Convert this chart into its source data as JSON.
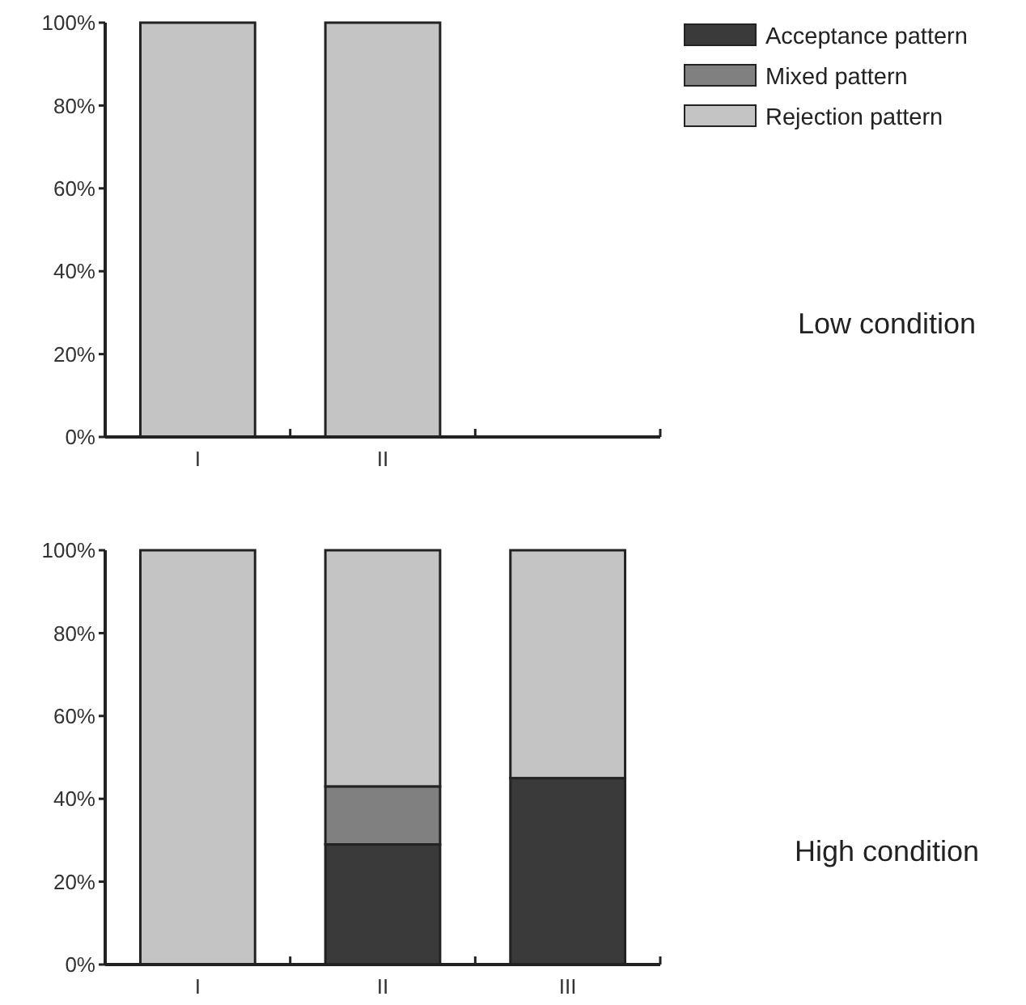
{
  "chart_data": [
    {
      "type": "bar",
      "annotations": [
        "Low condition"
      ],
      "categories": [
        "I",
        "II",
        null
      ],
      "stacked": true,
      "ylim": [
        0,
        100
      ],
      "yticks": [
        {
          "value": 0,
          "label": "0%"
        },
        {
          "value": 20,
          "label": "20%"
        },
        {
          "value": 40,
          "label": "40%"
        },
        {
          "value": 60,
          "label": "60%"
        },
        {
          "value": 80,
          "label": "80%"
        },
        {
          "value": 100,
          "label": "100%"
        }
      ],
      "legend": "top right",
      "grid": false,
      "series": [
        {
          "name": "Acceptance pattern",
          "color": "#3a3a3a",
          "values": [
            0,
            0,
            null
          ]
        },
        {
          "name": "Mixed pattern",
          "color": "#808080",
          "values": [
            0,
            0,
            null
          ]
        },
        {
          "name": "Rejection pattern",
          "color": "#c4c4c4",
          "values": [
            100,
            100,
            null
          ]
        }
      ]
    },
    {
      "type": "bar",
      "annotations": [
        "High condition"
      ],
      "categories": [
        "I",
        "II",
        "III"
      ],
      "stacked": true,
      "ylim": [
        0,
        100
      ],
      "yticks": [
        {
          "value": 0,
          "label": "0%"
        },
        {
          "value": 20,
          "label": "20%"
        },
        {
          "value": 40,
          "label": "40%"
        },
        {
          "value": 60,
          "label": "60%"
        },
        {
          "value": 80,
          "label": "80%"
        },
        {
          "value": 100,
          "label": "100%"
        }
      ],
      "grid": false,
      "series": [
        {
          "color": "#3a3a3a",
          "values": [
            0,
            29,
            45
          ]
        },
        {
          "color": "#808080",
          "values": [
            0,
            14,
            0
          ]
        },
        {
          "color": "#c4c4c4",
          "values": [
            100,
            57,
            55
          ]
        }
      ]
    }
  ]
}
